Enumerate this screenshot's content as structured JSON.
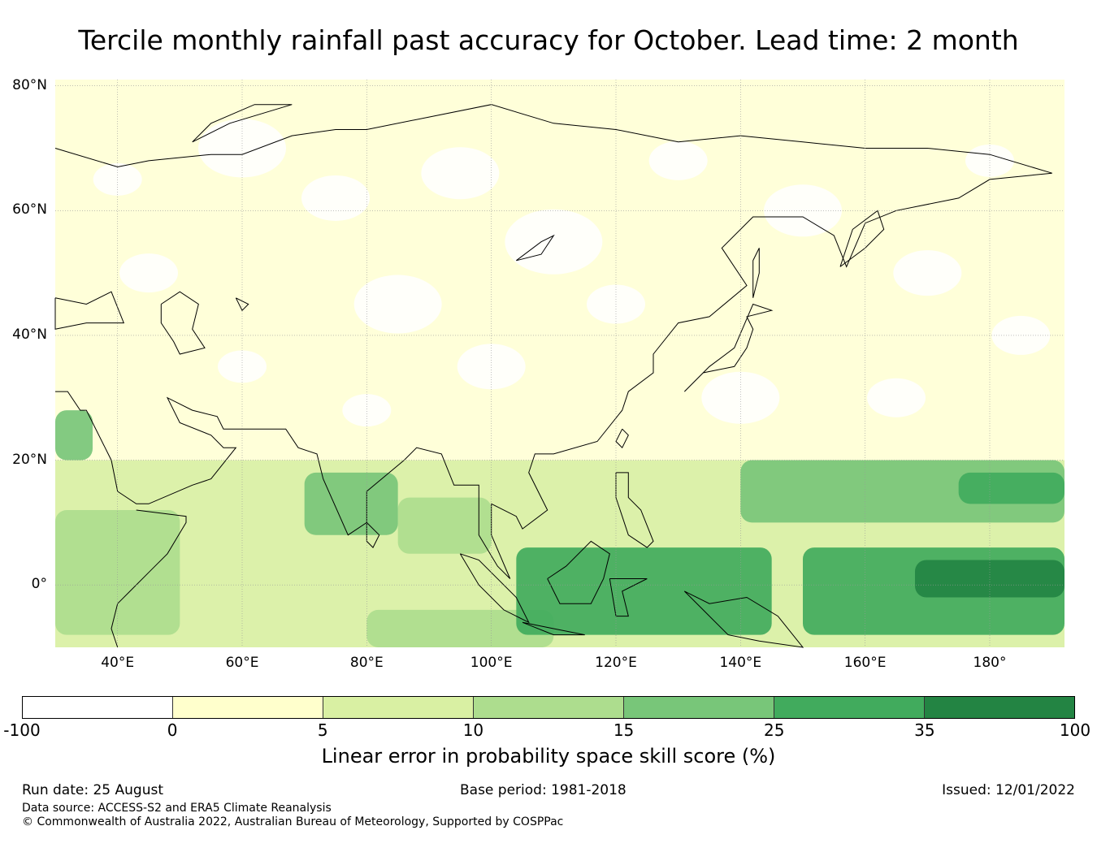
{
  "title": "Tercile monthly rainfall past accuracy for October. Lead time: 2 month",
  "map": {
    "region": "Asia and Western Pacific",
    "lon_range": [
      30,
      192
    ],
    "lat_range": [
      -10,
      81
    ],
    "lat_labels": [
      {
        "lat": 80,
        "label": "80°N"
      },
      {
        "lat": 60,
        "label": "60°N"
      },
      {
        "lat": 40,
        "label": "40°N"
      },
      {
        "lat": 20,
        "label": "20°N"
      },
      {
        "lat": 0,
        "label": "0°"
      }
    ],
    "lon_labels": [
      {
        "lon": 40,
        "label": "40°E"
      },
      {
        "lon": 60,
        "label": "60°E"
      },
      {
        "lon": 80,
        "label": "80°E"
      },
      {
        "lon": 100,
        "label": "100°E"
      },
      {
        "lon": 120,
        "label": "120°E"
      },
      {
        "lon": 140,
        "label": "140°E"
      },
      {
        "lon": 160,
        "label": "160°E"
      },
      {
        "lon": 180,
        "label": "180°"
      }
    ],
    "skill_regions": [
      {
        "name": "pacific-equatorial-core",
        "lon": [
          168,
          192
        ],
        "lat": [
          -2,
          4
        ],
        "level": 35
      },
      {
        "name": "pacific-equatorial",
        "lon": [
          150,
          192
        ],
        "lat": [
          -8,
          6
        ],
        "level": 25
      },
      {
        "name": "maritime-continent",
        "lon": [
          104,
          145
        ],
        "lat": [
          -8,
          6
        ],
        "level": 25
      },
      {
        "name": "west-pacific-north",
        "lon": [
          140,
          192
        ],
        "lat": [
          10,
          20
        ],
        "level": 15
      },
      {
        "name": "west-pacific-north-core",
        "lon": [
          175,
          192
        ],
        "lat": [
          13,
          18
        ],
        "level": 25
      },
      {
        "name": "india-west-coast",
        "lon": [
          70,
          85
        ],
        "lat": [
          8,
          18
        ],
        "level": 15
      },
      {
        "name": "bay-of-bengal",
        "lon": [
          85,
          100
        ],
        "lat": [
          5,
          14
        ],
        "level": 10
      },
      {
        "name": "indian-ocean-south",
        "lon": [
          80,
          110
        ],
        "lat": [
          -10,
          -4
        ],
        "level": 10
      },
      {
        "name": "east-africa",
        "lon": [
          30,
          50
        ],
        "lat": [
          -8,
          12
        ],
        "level": 10
      },
      {
        "name": "red-sea-west",
        "lon": [
          30,
          36
        ],
        "lat": [
          20,
          28
        ],
        "level": 15
      },
      {
        "name": "tropical-belt",
        "lon": [
          30,
          192
        ],
        "lat": [
          -10,
          20
        ],
        "level": 5
      },
      {
        "name": "mid-latitudes",
        "lon": [
          30,
          192
        ],
        "lat": [
          20,
          81
        ],
        "level": 0
      }
    ]
  },
  "colorbar": {
    "colors": [
      "#ffffff",
      "#ffffcc",
      "#d9f0a3",
      "#addd8e",
      "#78c679",
      "#41ab5d",
      "#238443"
    ],
    "ticks": [
      "-100",
      "0",
      "5",
      "10",
      "15",
      "25",
      "35",
      "100"
    ],
    "label": "Linear error in probability space skill score (%)"
  },
  "footer": {
    "run_date": "Run date: 25 August",
    "base_period": "Base period: 1981-2018",
    "issued": "Issued: 12/01/2022",
    "data_source": "Data source: ACCESS-S2 and ERA5 Climate Reanalysis",
    "copyright": "© Commonwealth of Australia 2022, Australian Bureau of Meteorology, Supported by COSPPac"
  }
}
